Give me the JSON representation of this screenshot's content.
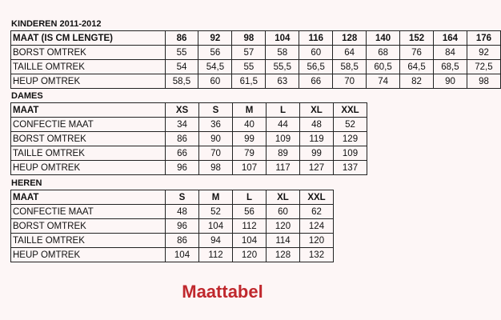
{
  "kinderen": {
    "title": "KINDEREN 2011-2012",
    "rows": [
      [
        "MAAT (IS CM LENGTE)",
        "86",
        "92",
        "98",
        "104",
        "116",
        "128",
        "140",
        "152",
        "164",
        "176"
      ],
      [
        "BORST OMTREK",
        "55",
        "56",
        "57",
        "58",
        "60",
        "64",
        "68",
        "76",
        "84",
        "92"
      ],
      [
        "TAILLE OMTREK",
        "54",
        "54,5",
        "55",
        "55,5",
        "56,5",
        "58,5",
        "60,5",
        "64,5",
        "68,5",
        "72,5"
      ],
      [
        "HEUP OMTREK",
        "58,5",
        "60",
        "61,5",
        "63",
        "66",
        "70",
        "74",
        "82",
        "90",
        "98"
      ]
    ]
  },
  "dames": {
    "title": "DAMES",
    "rows": [
      [
        "MAAT",
        "XS",
        "S",
        "M",
        "L",
        "XL",
        "XXL"
      ],
      [
        "CONFECTIE MAAT",
        "34",
        "36",
        "40",
        "44",
        "48",
        "52"
      ],
      [
        "BORST OMTREK",
        "86",
        "90",
        "99",
        "109",
        "119",
        "129"
      ],
      [
        "TAILLE OMTREK",
        "66",
        "70",
        "79",
        "89",
        "99",
        "109"
      ],
      [
        "HEUP OMTREK",
        "96",
        "98",
        "107",
        "117",
        "127",
        "137"
      ]
    ]
  },
  "heren": {
    "title": "HEREN",
    "rows": [
      [
        "MAAT",
        "S",
        "M",
        "L",
        "XL",
        "XXL"
      ],
      [
        "CONFECTIE MAAT",
        "48",
        "52",
        "56",
        "60",
        "62"
      ],
      [
        "BORST OMTREK",
        "96",
        "104",
        "112",
        "120",
        "124"
      ],
      [
        "TAILLE OMTREK",
        "86",
        "94",
        "104",
        "114",
        "120"
      ],
      [
        "HEUP OMTREK",
        "104",
        "112",
        "120",
        "128",
        "132"
      ]
    ]
  },
  "footer_title": "Maattabel"
}
